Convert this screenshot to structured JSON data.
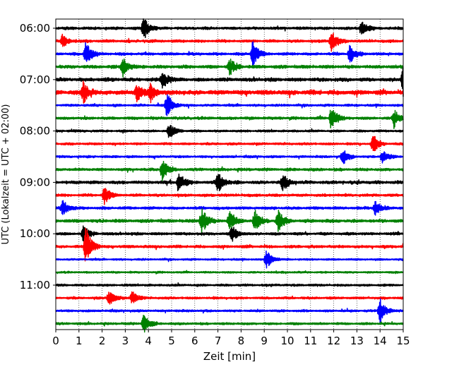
{
  "chart_data": {
    "type": "line",
    "subtype": "helicorder",
    "xlabel": "Zeit  [min]",
    "ylabel": "UTC (Lokalzeit = UTC + 02:00)",
    "xlim": [
      0,
      15
    ],
    "x_ticks": [
      "0",
      "1",
      "2",
      "3",
      "4",
      "5",
      "6",
      "7",
      "8",
      "9",
      "10",
      "11",
      "12",
      "13",
      "14",
      "15"
    ],
    "y_ticks": [
      "06:00",
      "07:00",
      "08:00",
      "09:00",
      "10:00",
      "11:00"
    ],
    "grid": "vertical dotted at each minute",
    "color_cycle": [
      "#000000",
      "#ff0000",
      "#0000ff",
      "#008000"
    ],
    "row_minutes": 15,
    "series": [
      {
        "start": "06:00",
        "amp": 0.6,
        "events": [
          [
            3.8,
            1.4
          ],
          [
            13.2,
            1.0
          ]
        ]
      },
      {
        "start": "06:15",
        "amp": 0.6,
        "events": [
          [
            0.3,
            0.8
          ],
          [
            11.9,
            1.4
          ]
        ]
      },
      {
        "start": "06:30",
        "amp": 0.6,
        "events": [
          [
            1.3,
            1.5
          ],
          [
            8.5,
            1.6
          ],
          [
            12.7,
            1.1
          ]
        ]
      },
      {
        "start": "06:45",
        "amp": 0.7,
        "events": [
          [
            2.9,
            1.1
          ],
          [
            7.5,
            1.0
          ]
        ]
      },
      {
        "start": "07:00",
        "amp": 0.8,
        "events": [
          [
            4.6,
            1.2
          ],
          [
            15.0,
            2.2
          ]
        ]
      },
      {
        "start": "07:15",
        "amp": 1.0,
        "events": [
          [
            1.2,
            1.3
          ],
          [
            3.5,
            1.0
          ],
          [
            4.1,
            1.1
          ]
        ]
      },
      {
        "start": "07:30",
        "amp": 0.5,
        "events": [
          [
            4.8,
            1.5
          ]
        ]
      },
      {
        "start": "07:45",
        "amp": 0.6,
        "events": [
          [
            11.9,
            1.5
          ],
          [
            14.6,
            1.1
          ]
        ]
      },
      {
        "start": "08:00",
        "amp": 0.5,
        "events": [
          [
            4.9,
            0.9
          ]
        ]
      },
      {
        "start": "08:15",
        "amp": 0.5,
        "events": [
          [
            13.7,
            1.2
          ]
        ]
      },
      {
        "start": "08:30",
        "amp": 0.5,
        "events": [
          [
            12.4,
            1.0
          ],
          [
            14.1,
            0.8
          ]
        ]
      },
      {
        "start": "08:45",
        "amp": 0.6,
        "events": [
          [
            4.6,
            1.3
          ]
        ]
      },
      {
        "start": "09:00",
        "amp": 0.7,
        "events": [
          [
            5.3,
            1.2
          ],
          [
            7.0,
            1.2
          ],
          [
            9.8,
            1.0
          ]
        ]
      },
      {
        "start": "09:15",
        "amp": 0.6,
        "events": [
          [
            2.1,
            1.2
          ]
        ]
      },
      {
        "start": "09:30",
        "amp": 0.6,
        "events": [
          [
            0.3,
            1.0
          ],
          [
            13.8,
            0.9
          ]
        ]
      },
      {
        "start": "09:45",
        "amp": 0.7,
        "events": [
          [
            6.3,
            1.6
          ],
          [
            7.5,
            1.3
          ],
          [
            8.6,
            1.2
          ],
          [
            9.6,
            1.3
          ]
        ]
      },
      {
        "start": "10:00",
        "amp": 0.6,
        "events": [
          [
            1.2,
            1.0
          ],
          [
            7.6,
            1.0
          ]
        ]
      },
      {
        "start": "10:15",
        "amp": 0.6,
        "events": [
          [
            1.3,
            2.5
          ]
        ]
      },
      {
        "start": "10:30",
        "amp": 0.4,
        "events": [
          [
            9.1,
            1.2
          ]
        ]
      },
      {
        "start": "10:45",
        "amp": 0.4,
        "events": []
      },
      {
        "start": "11:00",
        "amp": 0.5,
        "events": []
      },
      {
        "start": "11:15",
        "amp": 0.5,
        "events": [
          [
            2.3,
            0.9
          ],
          [
            3.3,
            0.8
          ]
        ]
      },
      {
        "start": "11:30",
        "amp": 0.5,
        "events": [
          [
            14.0,
            1.5
          ]
        ]
      },
      {
        "start": "11:45",
        "amp": 0.5,
        "events": [
          [
            3.8,
            1.2
          ]
        ]
      }
    ]
  }
}
